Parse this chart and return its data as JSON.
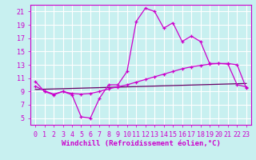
{
  "title": "",
  "xlabel": "Windchill (Refroidissement éolien,°C)",
  "bg_color": "#c8f0f0",
  "grid_color": "#ffffff",
  "line_color": "#cc00cc",
  "line_color2": "#660066",
  "xlim": [
    -0.5,
    23.5
  ],
  "ylim": [
    4,
    22
  ],
  "yticks": [
    5,
    7,
    9,
    11,
    13,
    15,
    17,
    19,
    21
  ],
  "xticks": [
    0,
    1,
    2,
    3,
    4,
    5,
    6,
    7,
    8,
    9,
    10,
    11,
    12,
    13,
    14,
    15,
    16,
    17,
    18,
    19,
    20,
    21,
    22,
    23
  ],
  "line1_x": [
    0,
    1,
    2,
    3,
    4,
    5,
    6,
    7,
    8,
    9,
    10,
    11,
    12,
    13,
    14,
    15,
    16,
    17,
    18,
    19,
    20,
    21,
    22,
    23
  ],
  "line1_y": [
    10.5,
    9.0,
    8.5,
    9.0,
    8.5,
    5.2,
    5.0,
    8.0,
    10.0,
    10.0,
    12.0,
    19.5,
    21.5,
    21.0,
    18.5,
    19.3,
    16.5,
    17.3,
    16.5,
    13.2,
    13.2,
    13.2,
    13.0,
    9.5
  ],
  "line2_x": [
    0,
    1,
    2,
    3,
    4,
    5,
    6,
    7,
    8,
    9,
    10,
    11,
    12,
    13,
    14,
    15,
    16,
    17,
    18,
    19,
    20,
    21,
    22,
    23
  ],
  "line2_y": [
    9.8,
    9.1,
    8.6,
    9.0,
    8.7,
    8.6,
    8.7,
    9.0,
    9.4,
    9.7,
    10.0,
    10.4,
    10.8,
    11.2,
    11.6,
    12.0,
    12.4,
    12.7,
    12.9,
    13.1,
    13.2,
    13.1,
    10.0,
    9.7
  ],
  "line3_x": [
    0,
    23
  ],
  "line3_y": [
    9.3,
    10.2
  ],
  "font_family": "monospace",
  "tick_fontsize": 6,
  "label_fontsize": 6.5
}
